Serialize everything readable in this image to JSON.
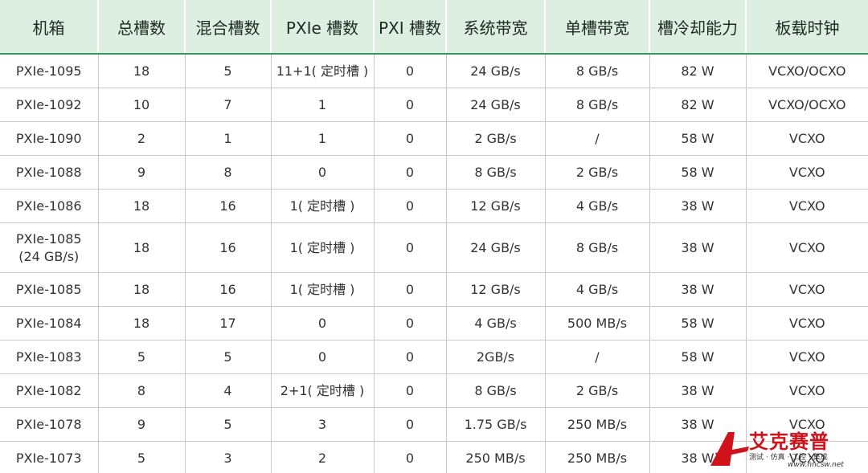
{
  "table": {
    "headers": [
      "机箱",
      "总槽数",
      "混合槽数",
      "PXIe 槽数",
      "PXI 槽数",
      "系统带宽",
      "单槽带宽",
      "槽冷却能力",
      "板载时钟"
    ],
    "rows": [
      [
        "PXIe-1095",
        "18",
        "5",
        "11+1( 定时槽 )",
        "0",
        "24 GB/s",
        "8 GB/s",
        "82 W",
        "VCXO/OCXO"
      ],
      [
        "PXIe-1092",
        "10",
        "7",
        "1",
        "0",
        "24 GB/s",
        "8 GB/s",
        "82 W",
        "VCXO/OCXO"
      ],
      [
        "PXIe-1090",
        "2",
        "1",
        "1",
        "0",
        "2 GB/s",
        "/",
        "58 W",
        "VCXO"
      ],
      [
        "PXIe-1088",
        "9",
        "8",
        "0",
        "0",
        "8 GB/s",
        "2 GB/s",
        "58 W",
        "VCXO"
      ],
      [
        "PXIe-1086",
        "18",
        "16",
        "1( 定时槽 )",
        "0",
        "12 GB/s",
        "4 GB/s",
        "38 W",
        "VCXO"
      ],
      [
        "PXIe-1085\n(24 GB/s)",
        "18",
        "16",
        "1( 定时槽 )",
        "0",
        "24 GB/s",
        "8 GB/s",
        "38 W",
        "VCXO"
      ],
      [
        "PXIe-1085",
        "18",
        "16",
        "1( 定时槽 )",
        "0",
        "12 GB/s",
        "4 GB/s",
        "38 W",
        "VCXO"
      ],
      [
        "PXIe-1084",
        "18",
        "17",
        "0",
        "0",
        "4 GB/s",
        "500 MB/s",
        "58 W",
        "VCXO"
      ],
      [
        "PXIe-1083",
        "5",
        "5",
        "0",
        "0",
        "2GB/s",
        "/",
        "58 W",
        "VCXO"
      ],
      [
        "PXIe-1082",
        "8",
        "4",
        "2+1( 定时槽 )",
        "0",
        "8 GB/s",
        "2 GB/s",
        "38 W",
        "VCXO"
      ],
      [
        "PXIe-1078",
        "9",
        "5",
        "3",
        "0",
        "1.75 GB/s",
        "250 MB/s",
        "38 W",
        "VCXO"
      ],
      [
        "PXIe-1073",
        "5",
        "3",
        "2",
        "0",
        "250 MB/s",
        "250 MB/s",
        "38 W",
        "VCXO"
      ]
    ]
  },
  "watermark": {
    "brand": "艾克赛普",
    "tagline": "测试 · 仿真 · 工控 · 集成",
    "url": "www.hncsw.net"
  }
}
